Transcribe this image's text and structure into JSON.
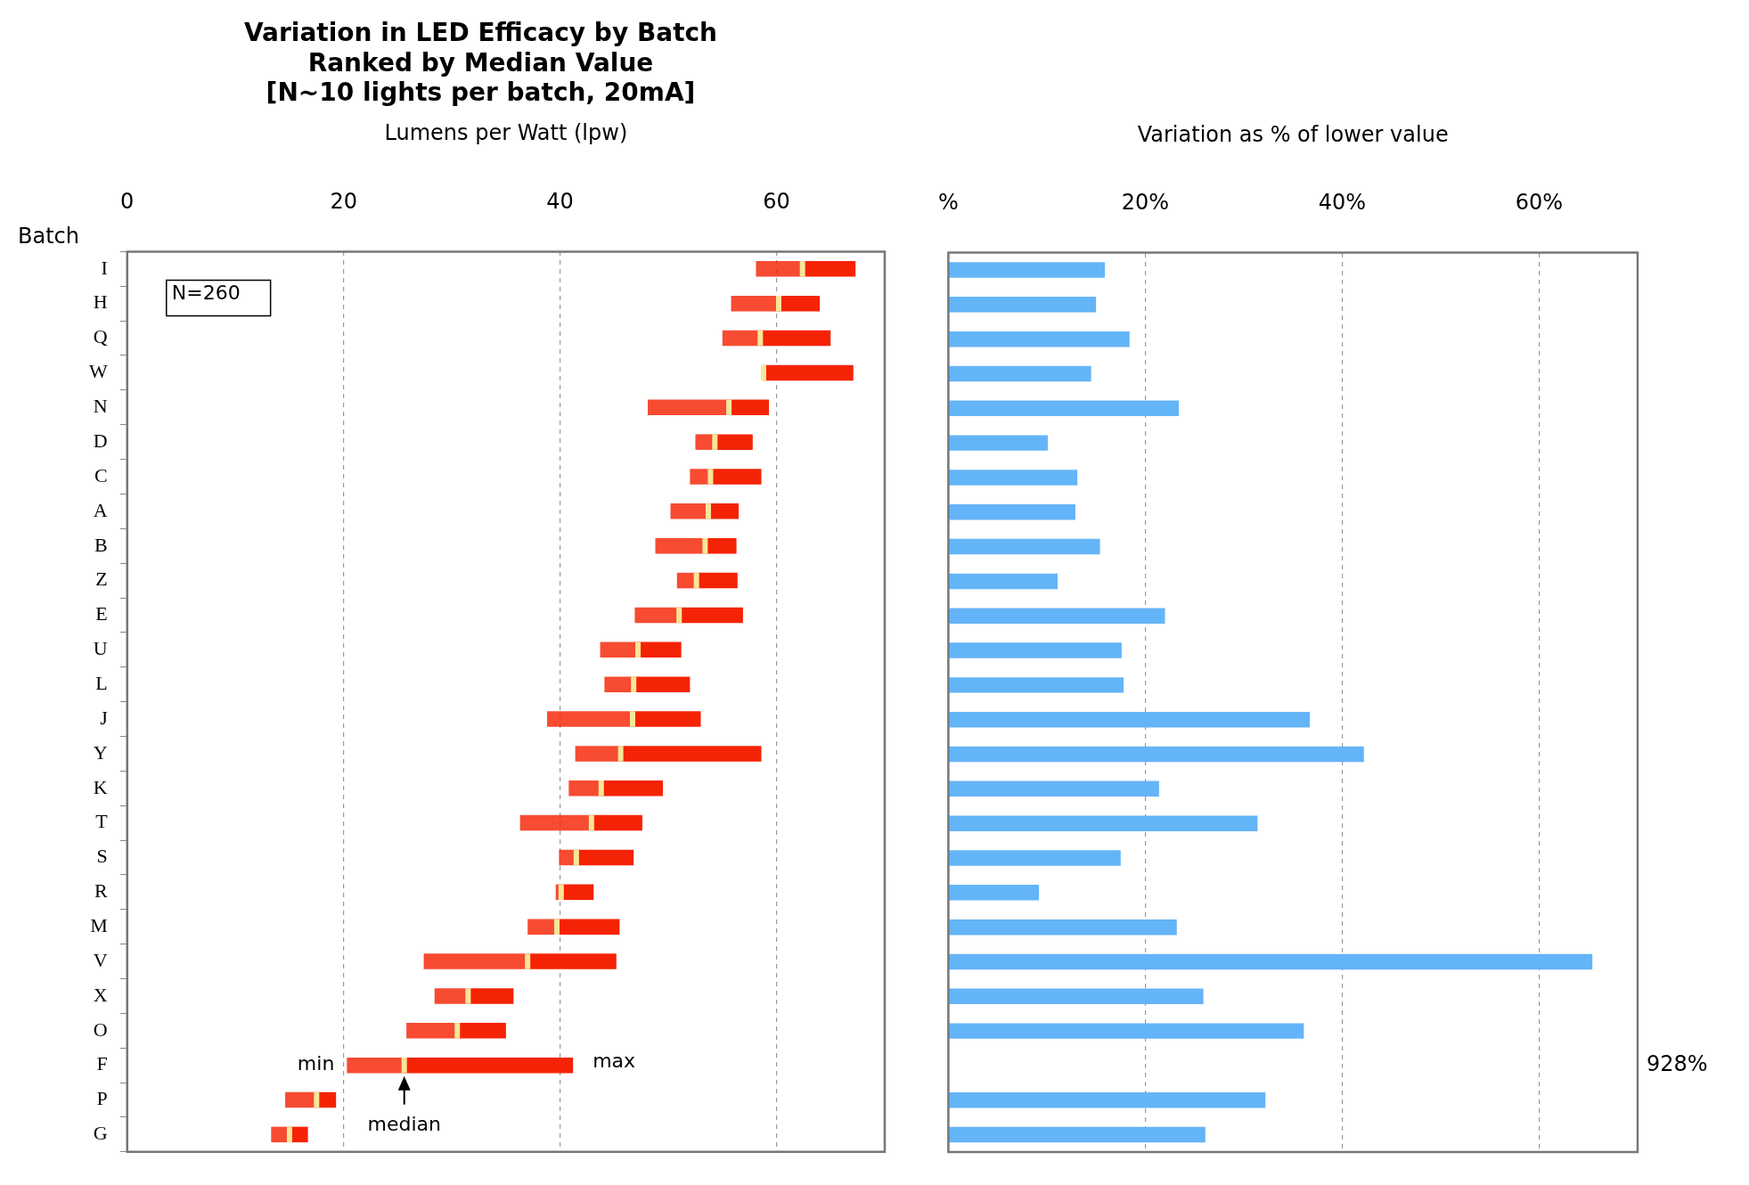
{
  "chart_data": [
    {
      "type": "box",
      "title": "Variation in LED Efficacy by Batch\nRanked by Median Value\n[N~10 lights per batch, 20mA]",
      "xlabel": "Lumens per Watt (lpw)",
      "ylabel": "Batch",
      "orientation": "horizontal",
      "categories": [
        "I",
        "H",
        "Q",
        "W",
        "N",
        "D",
        "C",
        "A",
        "B",
        "Z",
        "E",
        "U",
        "L",
        "J",
        "Y",
        "K",
        "T",
        "S",
        "R",
        "M",
        "V",
        "X",
        "O",
        "F",
        "P",
        "G"
      ],
      "series": [
        {
          "color": "#f52305",
          "boxes": [
            {
              "low": 58.1,
              "q1": 58.1,
              "median": 62.4,
              "q3": 67.3,
              "high": 67.3
            },
            {
              "low": 55.8,
              "q1": 55.8,
              "median": 60.2,
              "q3": 64.0,
              "high": 64.0
            },
            {
              "low": 55.0,
              "q1": 55.0,
              "median": 58.5,
              "q3": 65.0,
              "high": 65.0
            },
            {
              "low": 58.7,
              "q1": 58.7,
              "median": 58.8,
              "q3": 67.1,
              "high": 67.1
            },
            {
              "low": 48.1,
              "q1": 48.1,
              "median": 55.6,
              "q3": 59.3,
              "high": 59.3
            },
            {
              "low": 52.5,
              "q1": 52.5,
              "median": 54.3,
              "q3": 57.8,
              "high": 57.8
            },
            {
              "low": 52.0,
              "q1": 52.0,
              "median": 53.9,
              "q3": 58.6,
              "high": 58.6
            },
            {
              "low": 50.2,
              "q1": 50.2,
              "median": 53.7,
              "q3": 56.5,
              "high": 56.5
            },
            {
              "low": 48.8,
              "q1": 48.8,
              "median": 53.4,
              "q3": 56.3,
              "high": 56.3
            },
            {
              "low": 50.8,
              "q1": 50.8,
              "median": 52.6,
              "q3": 56.4,
              "high": 56.4
            },
            {
              "low": 46.9,
              "q1": 46.9,
              "median": 51.0,
              "q3": 56.9,
              "high": 56.9
            },
            {
              "low": 43.7,
              "q1": 43.7,
              "median": 47.2,
              "q3": 51.2,
              "high": 51.2
            },
            {
              "low": 44.1,
              "q1": 44.1,
              "median": 46.8,
              "q3": 52.0,
              "high": 52.0
            },
            {
              "low": 38.8,
              "q1": 38.8,
              "median": 46.7,
              "q3": 53.0,
              "high": 53.0
            },
            {
              "low": 41.4,
              "q1": 41.4,
              "median": 45.6,
              "q3": 58.6,
              "high": 58.6
            },
            {
              "low": 40.8,
              "q1": 40.8,
              "median": 43.8,
              "q3": 49.5,
              "high": 49.5
            },
            {
              "low": 36.3,
              "q1": 36.3,
              "median": 42.9,
              "q3": 47.6,
              "high": 47.6
            },
            {
              "low": 39.9,
              "q1": 39.9,
              "median": 41.5,
              "q3": 46.8,
              "high": 46.8
            },
            {
              "low": 39.6,
              "q1": 39.6,
              "median": 40.1,
              "q3": 43.1,
              "high": 43.1
            },
            {
              "low": 37.0,
              "q1": 37.0,
              "median": 39.7,
              "q3": 45.5,
              "high": 45.5
            },
            {
              "low": 27.4,
              "q1": 27.4,
              "median": 37.0,
              "q3": 45.2,
              "high": 45.2
            },
            {
              "low": 28.4,
              "q1": 28.4,
              "median": 31.5,
              "q3": 35.7,
              "high": 35.7
            },
            {
              "low": 25.8,
              "q1": 25.8,
              "median": 30.5,
              "q3": 35.0,
              "high": 35.0
            },
            {
              "low": 20.3,
              "q1": 20.3,
              "median": 25.6,
              "q3": 41.2,
              "high": 41.2
            },
            {
              "low": 14.6,
              "q1": 14.6,
              "median": 17.5,
              "q3": 19.3,
              "high": 19.3
            },
            {
              "low": 13.3,
              "q1": 13.3,
              "median": 15.0,
              "q3": 16.7,
              "high": 16.7
            }
          ]
        }
      ],
      "xlim": [
        0,
        70
      ],
      "xticks": [
        0,
        20,
        40,
        60
      ],
      "grid": "x",
      "legend": false,
      "annotations": [
        "N=260",
        {
          "text": "min",
          "x": 20.3,
          "y": "F"
        },
        {
          "text": "max",
          "x": 41.2,
          "y": "F"
        },
        {
          "text": "median",
          "x": 25.6,
          "y": "F"
        }
      ]
    },
    {
      "type": "bar",
      "xlabel": "Variation as % of lower value",
      "orientation": "horizontal",
      "categories": [
        null,
        null,
        null,
        null,
        null,
        null,
        null,
        null,
        null,
        null,
        null,
        null,
        null,
        null,
        null,
        null,
        null,
        null,
        null,
        null,
        null,
        null,
        null,
        null,
        null,
        null
      ],
      "series": [
        {
          "color": "#64b4f8",
          "values": [
            15.9,
            15.0,
            18.4,
            14.5,
            23.4,
            10.1,
            13.1,
            12.9,
            15.4,
            11.1,
            22.0,
            17.6,
            17.8,
            36.7,
            42.2,
            21.4,
            31.4,
            17.5,
            9.2,
            23.2,
            65.4,
            25.9,
            36.1,
            null,
            32.2,
            26.1
          ],
          "value_labels": [
            null,
            null,
            null,
            null,
            null,
            null,
            null,
            null,
            null,
            null,
            null,
            null,
            null,
            null,
            null,
            null,
            null,
            null,
            null,
            null,
            null,
            null,
            null,
            "928%",
            null,
            null
          ]
        }
      ],
      "xlim": [
        0,
        70
      ],
      "xticks": [
        {
          "value": 0,
          "label": "%"
        },
        {
          "value": 20,
          "label": "20%"
        },
        {
          "value": 40,
          "label": "40%"
        },
        {
          "value": 60,
          "label": "60%"
        }
      ],
      "grid": "x",
      "legend": false,
      "tick_labels": "x"
    }
  ]
}
